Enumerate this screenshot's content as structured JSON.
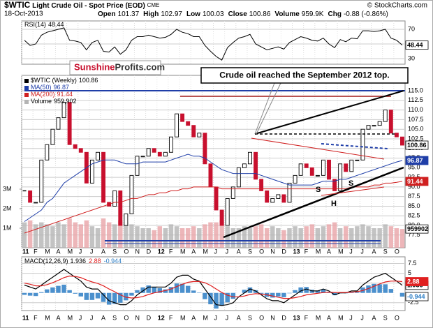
{
  "header": {
    "symbol": "$WTIC",
    "title": "Light Crude Oil - Spot Price (EOD)",
    "exchange": "CME",
    "date": "18-Oct-2013",
    "fields": [
      {
        "label": "Open",
        "value": 101.37
      },
      {
        "label": "High",
        "value": 102.97
      },
      {
        "label": "Low",
        "value": 100.03
      },
      {
        "label": "Close",
        "value": 100.86
      },
      {
        "label": "Volume",
        "value": "959.9K"
      },
      {
        "label": "Chg",
        "value": "-0.88 (-0.86%)"
      }
    ],
    "credit": "© StockCharts.com"
  },
  "logo": {
    "part1": "Sunshine",
    "part2": "Profits.com"
  },
  "chart_data": [
    {
      "type": "line",
      "title": "RSI(14)",
      "ylim": [
        22.4,
        81.4
      ],
      "yticks": [
        30,
        50,
        70
      ],
      "grid": true,
      "series": [
        {
          "name": "RSI(14)",
          "current": 48.44,
          "color": "#000000",
          "values": [
            55,
            48,
            50,
            62,
            66,
            68,
            70,
            72,
            55,
            54,
            52,
            42,
            52,
            55,
            40,
            39,
            46,
            36,
            42,
            55,
            60,
            60,
            62,
            60,
            58,
            59,
            63,
            70,
            66,
            64,
            60,
            60,
            48,
            40,
            33,
            28,
            45,
            52,
            58,
            60,
            63,
            50,
            46,
            42,
            44,
            46,
            43,
            52,
            56,
            60,
            58,
            55,
            54,
            58,
            50,
            45,
            56,
            53,
            58,
            57,
            68,
            68,
            67,
            68,
            70,
            58,
            55,
            48.44
          ]
        }
      ]
    },
    {
      "type": "candlestick",
      "ylim": [
        74.2,
        119
      ],
      "y2lim": [
        0,
        8.82
      ],
      "grid": true,
      "categories": [
        "11",
        null,
        "F",
        null,
        "M",
        null,
        "A",
        null,
        "M",
        null,
        "J",
        null,
        "J",
        null,
        "A",
        null,
        "S",
        null,
        "O",
        null,
        "N",
        null,
        "D",
        null,
        "12",
        null,
        "F",
        null,
        "M",
        null,
        "A",
        null,
        "M",
        null,
        "J",
        null,
        "J",
        null,
        "A",
        null,
        "S",
        null,
        "O",
        null,
        "N",
        null,
        "D",
        null,
        "13",
        null,
        "F",
        null,
        "M",
        null,
        "A",
        null,
        "M",
        null,
        "J",
        null,
        "J",
        null,
        "A",
        null,
        "S",
        null,
        "O",
        null
      ],
      "yticks": [
        77.5,
        {
          "value": 80,
          "label": "80.0"
        },
        82.5,
        {
          "value": 85,
          "label": "85.0"
        },
        87.5,
        {
          "value": 90,
          "label": "90.0"
        },
        92.5,
        {
          "value": 95,
          "label": "95.0"
        },
        97.5,
        {
          "value": 100,
          "label": "100.0"
        },
        102.5,
        {
          "value": 105,
          "label": "105.0"
        },
        107.5,
        {
          "value": 110,
          "label": "110.0"
        },
        112.5,
        {
          "value": 115,
          "label": "115.0"
        }
      ],
      "y2ticks": [
        {
          "value": 1,
          "label": "1M"
        },
        {
          "value": 2,
          "label": "2M"
        },
        {
          "value": 3,
          "label": "3M"
        }
      ],
      "annotations": {
        "callout": "Crude oil reached the September 2012 top.",
        "pattern": [
          "S",
          "H",
          "S"
        ]
      },
      "series": [
        {
          "name": "$WTIC (Weekly)",
          "current": 100.86,
          "color": "#000000",
          "down_color": "#c8102e",
          "values": [
            89,
            86,
            86,
            97,
            101,
            105,
            108,
            112,
            101,
            100,
            99,
            91,
            97,
            99,
            86,
            85,
            89,
            80,
            83,
            93,
            98,
            98,
            100,
            99,
            98,
            99,
            103,
            109,
            107,
            106,
            103,
            104,
            96,
            90,
            84,
            80,
            87,
            90,
            95,
            96,
            99,
            92,
            89,
            86,
            87,
            88,
            86,
            91,
            93,
            96,
            95,
            93,
            93,
            97,
            92,
            89,
            96,
            94,
            97,
            97,
            105,
            106,
            106,
            107,
            110,
            104,
            103,
            100.86
          ]
        },
        {
          "name": "MA(50)",
          "current": 96.87,
          "color": "#1f3ea8",
          "values": [
            81,
            82,
            83,
            84,
            86,
            87,
            89,
            91,
            92,
            93,
            94,
            95,
            96,
            96.5,
            97,
            97,
            97,
            96.5,
            96,
            96,
            96,
            96.5,
            96.5,
            96.5,
            96.5,
            96.5,
            97,
            97.5,
            98,
            98.5,
            98,
            98,
            97.5,
            96.5,
            95.5,
            94.5,
            94,
            93.5,
            93.5,
            93.5,
            93.5,
            93.5,
            93,
            92.5,
            92,
            91.5,
            91,
            90.5,
            90.5,
            90.5,
            90.5,
            90.5,
            91,
            91.5,
            91.5,
            91.5,
            92,
            92,
            92.5,
            93,
            93.5,
            94,
            94.5,
            95,
            95.5,
            96,
            96.5,
            96.87
          ]
        },
        {
          "name": "MA(200)",
          "current": 91.44,
          "color": "#d02020",
          "values": [
            78,
            78.5,
            79,
            79.5,
            80,
            80.5,
            81,
            81.5,
            82,
            82.5,
            83,
            83.5,
            84,
            84.5,
            85,
            85.5,
            86,
            86,
            86.5,
            87,
            87,
            87.5,
            88,
            88,
            88.5,
            88.5,
            89,
            89,
            89.5,
            89.5,
            90,
            90,
            90,
            90,
            90,
            89.5,
            89.5,
            89.5,
            89.5,
            89.5,
            89.5,
            89.5,
            89.5,
            89.5,
            89.5,
            89.5,
            89.5,
            89.5,
            89.5,
            89.5,
            89.5,
            89.5,
            89.5,
            89.5,
            89.5,
            89.5,
            89.5,
            89.5,
            90,
            90,
            90,
            90,
            90.5,
            90.5,
            91,
            91,
            91.2,
            91.44
          ]
        },
        {
          "name": "Volume",
          "axis": "y2",
          "current": 959902,
          "current_label": "959,902",
          "color": "#b4b4b4",
          "down_color": "#e8a4a8",
          "values": [
            1.3,
            1.4,
            1.2,
            1.3,
            1.2,
            1.1,
            1.3,
            1.2,
            1.5,
            1.3,
            1.2,
            1.4,
            1.1,
            1.0,
            1.5,
            1.3,
            1.2,
            1.4,
            1.3,
            1.2,
            1.1,
            1.0,
            1.0,
            0.9,
            1.1,
            1.0,
            1.2,
            1.1,
            1.0,
            1.0,
            1.1,
            1.0,
            1.2,
            1.3,
            1.3,
            1.4,
            1.1,
            1.0,
            1.0,
            1.1,
            1.0,
            1.1,
            1.2,
            1.0,
            1.1,
            1.0,
            0.9,
            1.0,
            1.1,
            1.0,
            1.1,
            1.2,
            1.0,
            1.1,
            1.2,
            1.3,
            1.0,
            1.1,
            1.0,
            1.1,
            1.2,
            1.1,
            1.0,
            1.0,
            1.2,
            1.1,
            1.0,
            0.959902
          ]
        }
      ]
    },
    {
      "type": "macd",
      "title": "MACD(12,26,9)",
      "ylim": [
        -4.5,
        9.2
      ],
      "yticks": [
        -2.5,
        2.5,
        5,
        7.5
      ],
      "grid": true,
      "series": [
        {
          "current": 1.936,
          "color": "#000000",
          "values": [
            2,
            1.5,
            1,
            2,
            3,
            4,
            5,
            6,
            5,
            4,
            3,
            1.5,
            1,
            1,
            -0.5,
            -2,
            -2.5,
            -3,
            -3,
            -2,
            -0.5,
            0.5,
            1.5,
            1.5,
            1.5,
            1.5,
            2.5,
            4,
            4.5,
            4.5,
            3.5,
            3,
            1,
            -1,
            -3,
            -3.2,
            -3,
            -2.5,
            -1,
            0,
            1,
            0.5,
            -0.5,
            -1.5,
            -2,
            -2,
            -2.5,
            -1.5,
            -0.5,
            0.5,
            1,
            0.5,
            0.5,
            1,
            0.5,
            -0.5,
            0,
            0,
            0.5,
            0.5,
            2,
            3,
            4,
            4.5,
            5,
            4,
            3,
            1.936
          ]
        },
        {
          "current": 2.88,
          "color": "#e02020",
          "values": [
            2.5,
            2.2,
            1.8,
            1.8,
            2.1,
            2.6,
            3.2,
            3.9,
            4.3,
            4.2,
            3.9,
            3.3,
            2.8,
            2.4,
            1.8,
            1.0,
            0.3,
            -0.5,
            -1.1,
            -1.3,
            -1.2,
            -0.9,
            -0.4,
            0,
            0.3,
            0.6,
            1.0,
            1.6,
            2.2,
            2.7,
            2.9,
            2.9,
            2.6,
            1.9,
            1.0,
            0.1,
            -0.6,
            -1.0,
            -1.0,
            -0.8,
            -0.4,
            -0.2,
            -0.3,
            -0.5,
            -0.8,
            -1.1,
            -1.4,
            -1.4,
            -1.2,
            -0.9,
            -0.5,
            -0.3,
            -0.1,
            0.1,
            0.2,
            0.1,
            0.1,
            0.1,
            0.2,
            0.3,
            0.6,
            1.1,
            1.7,
            2.3,
            2.8,
            3.0,
            3.0,
            2.88
          ]
        },
        {
          "current": -0.944,
          "color": "#2b7cc4",
          "histogram": true,
          "values": [
            -0.5,
            -0.7,
            -0.8,
            0.2,
            0.9,
            1.4,
            1.8,
            2.1,
            0.7,
            -0.2,
            -0.9,
            -1.8,
            -1.8,
            -1.4,
            -2.3,
            -3,
            -2.8,
            -2.5,
            -1.9,
            -0.7,
            0.7,
            1.4,
            1.9,
            1.5,
            1.2,
            0.9,
            1.5,
            2.4,
            2.3,
            1.8,
            0.6,
            0.1,
            -1.6,
            -2.9,
            -4,
            -3.3,
            -2.4,
            -1.5,
            0,
            0.8,
            1.4,
            0.7,
            -0.2,
            -1,
            -1.2,
            -0.9,
            -1.1,
            -0.1,
            0.7,
            1.4,
            1.5,
            0.8,
            0.6,
            0.9,
            0.3,
            -0.6,
            -0.1,
            -0.1,
            0.3,
            0.2,
            1.4,
            1.9,
            2.3,
            2.2,
            2.2,
            1,
            0,
            -0.944
          ]
        }
      ]
    }
  ]
}
